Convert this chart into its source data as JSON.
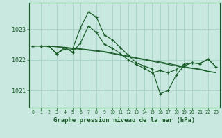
{
  "title": "Graphe pression niveau de la mer (hPa)",
  "yticks": [
    1021,
    1022,
    1023
  ],
  "ylim": [
    1020.45,
    1023.85
  ],
  "xlim": [
    -0.5,
    23.5
  ],
  "bg_color": "#c8e8e0",
  "grid_color": "#aad4cc",
  "line_color": "#1a5c28",
  "series_main": [
    1022.45,
    1022.45,
    1022.45,
    1022.2,
    1022.35,
    1022.35,
    1023.05,
    1023.55,
    1023.38,
    1022.8,
    1022.65,
    1022.4,
    1022.15,
    1021.9,
    1021.8,
    1021.7,
    1020.9,
    1021.0,
    1021.5,
    1021.8,
    1021.9,
    1021.88,
    1022.02,
    1021.78
  ],
  "series_mid": [
    1022.45,
    1022.45,
    1022.45,
    1022.2,
    1022.4,
    1022.25,
    1022.55,
    1023.1,
    1022.88,
    1022.5,
    1022.38,
    1022.2,
    1022.0,
    1021.85,
    1021.72,
    1021.58,
    1021.65,
    1021.58,
    1021.68,
    1021.85,
    1021.9,
    1021.87,
    1022.02,
    1021.78
  ],
  "series_flat1": [
    1022.45,
    1022.45,
    1022.44,
    1022.42,
    1022.4,
    1022.37,
    1022.34,
    1022.31,
    1022.28,
    1022.25,
    1022.2,
    1022.15,
    1022.1,
    1022.05,
    1022.0,
    1021.95,
    1021.9,
    1021.85,
    1021.8,
    1021.75,
    1021.72,
    1021.68,
    1021.62,
    1021.58
  ],
  "series_flat2": [
    1022.45,
    1022.45,
    1022.44,
    1022.43,
    1022.41,
    1022.38,
    1022.36,
    1022.33,
    1022.3,
    1022.27,
    1022.22,
    1022.17,
    1022.12,
    1022.07,
    1022.02,
    1021.97,
    1021.93,
    1021.88,
    1021.83,
    1021.78,
    1021.73,
    1021.7,
    1021.63,
    1021.59
  ]
}
